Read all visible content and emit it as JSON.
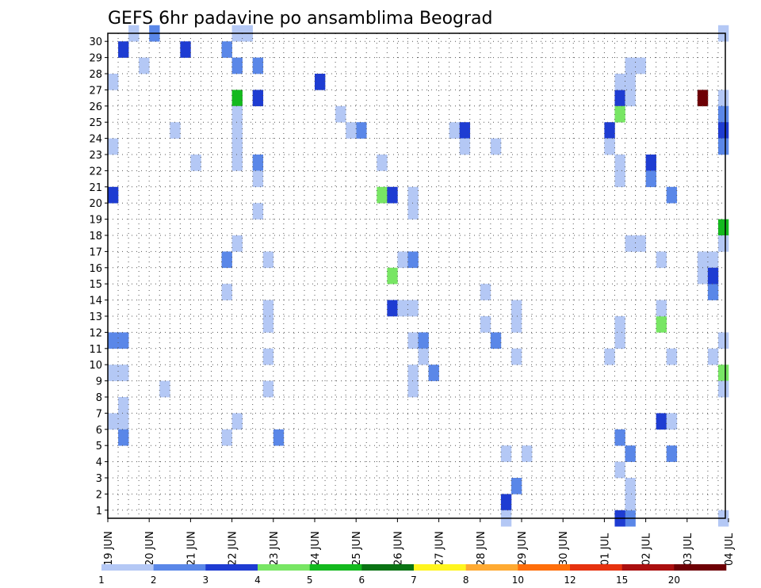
{
  "chart_data": {
    "type": "heatmap",
    "title": "GEFS 6hr padavine po ansamblima Beograd",
    "xlabel": "",
    "ylabel": "",
    "grid": true,
    "y_range": [
      0,
      30
    ],
    "y_ticks": [
      "1",
      "2",
      "3",
      "4",
      "5",
      "6",
      "7",
      "8",
      "9",
      "10",
      "11",
      "12",
      "13",
      "14",
      "15",
      "16",
      "17",
      "18",
      "19",
      "20",
      "21",
      "22",
      "23",
      "24",
      "25",
      "26",
      "27",
      "28",
      "29",
      "30"
    ],
    "x_tick_labels": [
      "19 JUN",
      "20 JUN",
      "21 JUN",
      "22 JUN",
      "23 JUN",
      "24 JUN",
      "25 JUN",
      "26 JUN",
      "27 JUN",
      "28 JUN",
      "29 JUN",
      "30 JUN",
      "01 JUL",
      "02 JUL",
      "03 JUL",
      "04 JUL"
    ],
    "steps_per_day": 4,
    "color_scale": {
      "levels": [
        "1",
        "2",
        "3",
        "4",
        "5",
        "6",
        "7",
        "8",
        "10",
        "12",
        "15",
        "20"
      ],
      "colors": [
        "#b4c8f5",
        "#5a87e8",
        "#1e3cd2",
        "#78e664",
        "#14b91e",
        "#0a7314",
        "#fff51e",
        "#ffaa32",
        "#ff6e0a",
        "#e6320f",
        "#aa0f0f",
        "#6e0005"
      ]
    },
    "cells": [
      [
        1,
        29,
        2
      ],
      [
        1,
        11,
        1
      ],
      [
        1,
        9,
        0
      ],
      [
        1,
        7,
        0
      ],
      [
        1,
        6,
        0
      ],
      [
        1,
        5,
        1
      ],
      [
        0,
        27,
        0
      ],
      [
        0,
        23,
        0
      ],
      [
        0,
        20,
        2
      ],
      [
        0,
        11,
        1
      ],
      [
        0,
        9,
        0
      ],
      [
        0,
        6,
        0
      ],
      [
        2,
        30,
        0
      ],
      [
        4,
        30,
        1
      ],
      [
        3,
        28,
        0
      ],
      [
        7,
        29,
        2
      ],
      [
        6,
        24,
        0
      ],
      [
        5,
        8,
        0
      ],
      [
        8,
        22,
        0
      ],
      [
        11,
        29,
        1
      ],
      [
        12,
        28,
        1
      ],
      [
        12,
        30,
        0
      ],
      [
        13,
        30,
        0
      ],
      [
        12,
        26,
        4
      ],
      [
        12,
        25,
        0
      ],
      [
        12,
        24,
        0
      ],
      [
        12,
        23,
        0
      ],
      [
        12,
        22,
        0
      ],
      [
        12,
        17,
        0
      ],
      [
        11,
        16,
        1
      ],
      [
        11,
        14,
        0
      ],
      [
        12,
        6,
        0
      ],
      [
        11,
        5,
        0
      ],
      [
        14,
        28,
        1
      ],
      [
        14,
        26,
        2
      ],
      [
        14,
        22,
        1
      ],
      [
        14,
        21,
        0
      ],
      [
        14,
        19,
        0
      ],
      [
        15,
        16,
        0
      ],
      [
        15,
        13,
        0
      ],
      [
        15,
        12,
        0
      ],
      [
        15,
        10,
        0
      ],
      [
        15,
        8,
        0
      ],
      [
        16,
        5,
        1
      ],
      [
        20,
        27,
        2
      ],
      [
        22,
        25,
        0
      ],
      [
        24,
        24,
        1
      ],
      [
        23,
        24,
        0
      ],
      [
        26,
        22,
        0
      ],
      [
        26,
        20,
        3
      ],
      [
        27,
        20,
        2
      ],
      [
        27,
        15,
        3
      ],
      [
        27,
        13,
        2
      ],
      [
        29,
        20,
        0
      ],
      [
        29,
        19,
        0
      ],
      [
        28,
        16,
        0
      ],
      [
        29,
        16,
        1
      ],
      [
        28,
        13,
        0
      ],
      [
        29,
        13,
        0
      ],
      [
        29,
        11,
        0
      ],
      [
        30,
        11,
        1
      ],
      [
        30,
        10,
        0
      ],
      [
        29,
        9,
        0
      ],
      [
        29,
        8,
        0
      ],
      [
        31,
        9,
        1
      ],
      [
        33,
        24,
        0
      ],
      [
        34,
        24,
        2
      ],
      [
        34,
        23,
        0
      ],
      [
        37,
        23,
        0
      ],
      [
        36,
        14,
        0
      ],
      [
        36,
        12,
        0
      ],
      [
        37,
        11,
        1
      ],
      [
        38,
        4,
        0
      ],
      [
        39,
        13,
        0
      ],
      [
        39,
        12,
        0
      ],
      [
        39,
        10,
        0
      ],
      [
        38,
        1,
        2
      ],
      [
        39,
        2,
        1
      ],
      [
        38,
        0,
        0
      ],
      [
        40,
        4,
        0
      ],
      [
        50,
        28,
        0
      ],
      [
        51,
        28,
        0
      ],
      [
        50,
        17,
        0
      ],
      [
        51,
        17,
        0
      ],
      [
        49,
        26,
        2
      ],
      [
        50,
        26,
        0
      ],
      [
        49,
        27,
        0
      ],
      [
        50,
        27,
        0
      ],
      [
        49,
        22,
        0
      ],
      [
        49,
        21,
        0
      ],
      [
        49,
        12,
        0
      ],
      [
        49,
        11,
        0
      ],
      [
        48,
        10,
        0
      ],
      [
        49,
        5,
        1
      ],
      [
        50,
        4,
        1
      ],
      [
        49,
        3,
        0
      ],
      [
        50,
        2,
        0
      ],
      [
        50,
        0,
        1
      ],
      [
        49,
        0,
        2
      ],
      [
        50,
        1,
        0
      ],
      [
        48,
        24,
        2
      ],
      [
        48,
        23,
        0
      ],
      [
        49,
        25,
        3
      ],
      [
        48,
        23,
        0
      ],
      [
        54,
        6,
        0
      ],
      [
        53,
        16,
        0
      ],
      [
        53,
        6,
        2
      ],
      [
        54,
        6,
        0
      ],
      [
        53,
        12,
        3
      ],
      [
        53,
        13,
        0
      ],
      [
        54,
        20,
        1
      ],
      [
        52,
        22,
        2
      ],
      [
        52,
        21,
        1
      ],
      [
        54,
        10,
        0
      ],
      [
        54,
        4,
        1
      ],
      [
        59,
        30,
        0
      ],
      [
        60,
        28,
        0
      ],
      [
        59,
        26,
        0
      ],
      [
        59,
        25,
        1
      ],
      [
        59,
        24,
        2
      ],
      [
        59,
        23,
        1
      ],
      [
        57,
        26,
        11
      ],
      [
        57,
        16,
        0
      ],
      [
        58,
        14,
        1
      ],
      [
        58,
        16,
        0
      ],
      [
        59,
        8,
        0
      ],
      [
        59,
        9,
        3
      ],
      [
        57,
        15,
        0
      ],
      [
        58,
        15,
        2
      ],
      [
        59,
        18,
        4
      ],
      [
        59,
        17,
        0
      ],
      [
        59,
        11,
        0
      ],
      [
        58,
        10,
        0
      ],
      [
        62,
        9,
        1
      ],
      [
        60,
        12,
        3
      ],
      [
        61,
        12,
        9
      ],
      [
        61,
        10,
        0
      ],
      [
        60,
        9,
        6
      ],
      [
        61,
        8,
        0
      ],
      [
        59,
        8,
        0
      ],
      [
        59,
        0,
        0
      ],
      [
        61,
        28,
        0
      ],
      [
        62,
        28,
        0
      ],
      [
        63,
        28,
        0
      ],
      [
        64,
        28,
        0
      ],
      [
        63,
        26,
        0
      ],
      [
        61,
        26,
        0
      ],
      [
        60,
        15,
        0
      ],
      [
        61,
        15,
        0
      ],
      [
        62,
        15,
        2
      ],
      [
        63,
        15,
        0
      ],
      [
        64,
        15,
        0
      ],
      [
        66,
        15,
        1
      ],
      [
        66,
        14,
        2
      ],
      [
        65,
        15,
        0
      ],
      [
        62,
        10,
        2
      ],
      [
        63,
        10,
        2
      ],
      [
        64,
        10,
        6
      ],
      [
        65,
        10,
        4
      ],
      [
        64,
        8,
        4
      ],
      [
        65,
        8,
        0
      ],
      [
        64,
        15,
        4
      ],
      [
        64,
        14,
        0
      ],
      [
        64,
        6,
        0
      ],
      [
        63,
        4,
        0
      ],
      [
        64,
        4,
        0
      ],
      [
        64,
        0,
        1
      ],
      [
        64,
        0,
        0
      ],
      [
        65,
        4,
        3
      ],
      [
        66,
        4,
        1
      ],
      [
        67,
        4,
        5
      ],
      [
        65,
        0,
        3
      ],
      [
        66,
        28,
        0
      ],
      [
        67,
        28,
        0
      ],
      [
        68,
        28,
        0
      ],
      [
        65,
        28,
        1
      ],
      [
        66,
        29,
        11
      ],
      [
        67,
        29,
        11
      ],
      [
        68,
        29,
        11
      ],
      [
        69,
        29,
        9
      ],
      [
        70,
        29,
        6
      ],
      [
        71,
        29,
        6
      ],
      [
        72,
        29,
        5
      ],
      [
        73,
        29,
        4
      ],
      [
        74,
        29,
        4
      ],
      [
        75,
        29,
        8
      ],
      [
        76,
        29,
        3
      ],
      [
        67,
        26,
        1
      ],
      [
        68,
        26,
        1
      ],
      [
        70,
        26,
        2
      ],
      [
        68,
        19,
        8
      ],
      [
        69,
        19,
        1
      ],
      [
        71,
        19,
        6
      ],
      [
        72,
        19,
        2
      ],
      [
        75,
        19,
        0
      ],
      [
        76,
        19,
        5
      ],
      [
        67,
        15,
        0
      ],
      [
        69,
        15,
        4
      ],
      [
        70,
        15,
        1
      ],
      [
        71,
        15,
        2
      ],
      [
        72,
        15,
        0
      ],
      [
        73,
        15,
        11
      ],
      [
        74,
        15,
        0
      ],
      [
        75,
        15,
        0
      ],
      [
        76,
        15,
        0
      ],
      [
        68,
        12,
        0
      ],
      [
        70,
        3,
        0
      ],
      [
        69,
        1,
        2
      ],
      [
        71,
        1,
        4
      ],
      [
        72,
        1,
        2
      ],
      [
        74,
        1,
        1
      ],
      [
        75,
        1,
        0
      ],
      [
        74,
        2,
        0
      ],
      [
        75,
        2,
        0
      ],
      [
        72,
        3,
        1
      ],
      [
        69,
        0,
        7
      ],
      [
        69,
        4,
        5
      ],
      [
        70,
        27,
        0
      ],
      [
        71,
        27,
        0
      ],
      [
        72,
        27,
        0
      ],
      [
        72,
        26,
        2
      ],
      [
        72,
        22,
        5
      ],
      [
        73,
        22,
        2
      ],
      [
        73,
        16,
        0
      ],
      [
        73,
        12,
        0
      ],
      [
        73,
        11,
        0
      ],
      [
        72,
        0,
        0
      ],
      [
        76,
        28,
        2
      ],
      [
        77,
        28,
        0
      ],
      [
        76,
        27,
        0
      ],
      [
        77,
        27,
        0
      ],
      [
        76,
        24,
        5
      ],
      [
        77,
        23,
        0
      ],
      [
        76,
        20,
        0
      ],
      [
        79,
        23,
        0
      ],
      [
        80,
        23,
        0
      ],
      [
        79,
        19,
        1
      ],
      [
        79,
        12,
        0
      ],
      [
        78,
        11,
        1
      ],
      [
        79,
        11,
        0
      ],
      [
        78,
        12,
        0
      ],
      [
        76,
        3,
        0
      ],
      [
        79,
        3,
        1
      ],
      [
        79,
        7,
        5
      ],
      [
        78,
        5,
        3
      ],
      [
        79,
        5,
        7
      ],
      [
        80,
        5,
        4
      ],
      [
        81,
        5,
        0
      ],
      [
        82,
        5,
        0
      ],
      [
        83,
        5,
        6
      ],
      [
        80,
        27,
        6
      ],
      [
        81,
        28,
        1
      ],
      [
        82,
        28,
        0
      ],
      [
        83,
        28,
        3
      ],
      [
        84,
        28,
        0
      ],
      [
        79,
        15,
        0
      ],
      [
        80,
        15,
        2
      ],
      [
        81,
        15,
        2
      ],
      [
        82,
        15,
        2
      ],
      [
        83,
        15,
        3
      ],
      [
        84,
        14,
        6
      ],
      [
        79,
        14,
        0
      ],
      [
        80,
        12,
        1
      ],
      [
        81,
        12,
        2
      ],
      [
        84,
        12,
        1
      ],
      [
        81,
        17,
        0
      ],
      [
        79,
        19,
        1
      ],
      [
        82,
        0,
        0
      ]
    ]
  }
}
